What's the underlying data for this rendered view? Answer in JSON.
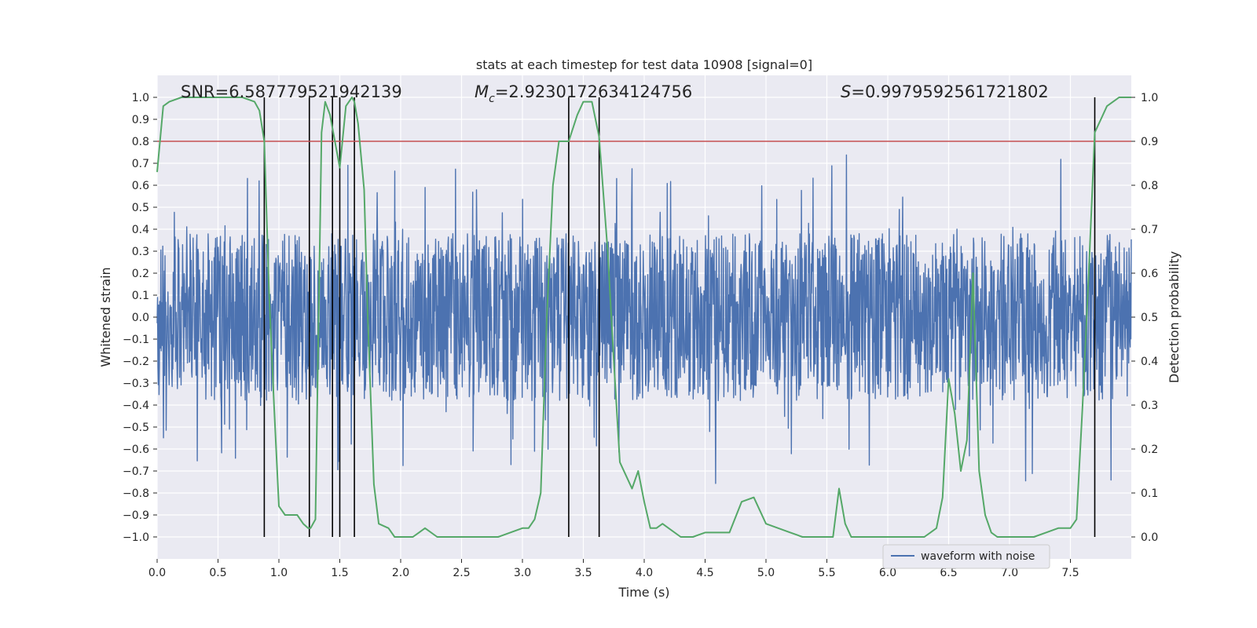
{
  "chart_data": {
    "type": "line",
    "title": "stats at each timestep for test data 10908 [signal=0]",
    "xlabel": "Time (s)",
    "ylabel_left": "Whitened strain",
    "ylabel_right": "Detection probability",
    "xlim": [
      0.0,
      8.0
    ],
    "ylim_left": [
      -1.1,
      1.1
    ],
    "ylim_right": [
      -0.05,
      1.05
    ],
    "x_ticks": [
      "0.0",
      "0.5",
      "1.0",
      "1.5",
      "2.0",
      "2.5",
      "3.0",
      "3.5",
      "4.0",
      "4.5",
      "5.0",
      "5.5",
      "6.0",
      "6.5",
      "7.0",
      "7.5"
    ],
    "y_ticks_left": [
      "1.0",
      "0.9",
      "0.8",
      "0.7",
      "0.6",
      "0.5",
      "0.4",
      "0.3",
      "0.2",
      "0.1",
      "0.0",
      "-0.1",
      "-0.2",
      "-0.3",
      "-0.4",
      "-0.5",
      "-0.6",
      "-0.7",
      "-0.8",
      "-0.9",
      "-1.0"
    ],
    "y_ticks_right": [
      "1.0",
      "0.9",
      "0.8",
      "0.7",
      "0.6",
      "0.5",
      "0.4",
      "0.3",
      "0.2",
      "0.1",
      "0.0"
    ],
    "grid": true,
    "legend": {
      "label": "waveform with noise",
      "placement": "lower-right"
    },
    "annotations": {
      "snr": "SNR=6.587779521942139",
      "mc_symbol": "M",
      "mc_sub": "c",
      "mc_value": "=2.9230172634124756",
      "s_symbol": "S",
      "s_value": "=0.9979592561721802"
    },
    "threshold": {
      "value": 0.9,
      "axis": "right",
      "color": "#c44e52"
    },
    "vertical_markers": [
      0.88,
      1.25,
      1.44,
      1.5,
      1.62,
      3.38,
      3.63,
      7.7
    ],
    "marker_range_right": [
      0.0,
      1.0
    ],
    "waveform": {
      "name": "waveform with noise",
      "color": "#4c72b0",
      "seed": 10908,
      "samples": 2600,
      "core_amplitude": 0.38,
      "peak_amplitude": 1.0
    },
    "probability_series": {
      "name": "detection probability",
      "color": "#55a868",
      "x": [
        0.0,
        0.05,
        0.1,
        0.2,
        0.3,
        0.4,
        0.5,
        0.6,
        0.7,
        0.8,
        0.84,
        0.88,
        0.92,
        0.96,
        1.0,
        1.05,
        1.1,
        1.15,
        1.2,
        1.24,
        1.26,
        1.3,
        1.35,
        1.38,
        1.42,
        1.46,
        1.5,
        1.55,
        1.6,
        1.62,
        1.65,
        1.7,
        1.73,
        1.78,
        1.82,
        1.9,
        1.95,
        2.0,
        2.05,
        2.1,
        2.15,
        2.2,
        2.3,
        2.4,
        2.5,
        2.6,
        2.7,
        2.8,
        2.9,
        3.0,
        3.05,
        3.1,
        3.15,
        3.2,
        3.25,
        3.3,
        3.38,
        3.45,
        3.5,
        3.57,
        3.63,
        3.7,
        3.75,
        3.8,
        3.9,
        3.95,
        4.0,
        4.05,
        4.1,
        4.15,
        4.2,
        4.3,
        4.4,
        4.5,
        4.6,
        4.7,
        4.8,
        4.9,
        5.0,
        5.1,
        5.2,
        5.3,
        5.4,
        5.5,
        5.55,
        5.6,
        5.65,
        5.7,
        5.75,
        5.8,
        5.9,
        6.0,
        6.1,
        6.2,
        6.3,
        6.35,
        6.4,
        6.45,
        6.5,
        6.55,
        6.6,
        6.65,
        6.7,
        6.75,
        6.8,
        6.85,
        6.9,
        6.95,
        7.0,
        7.1,
        7.2,
        7.3,
        7.4,
        7.45,
        7.5,
        7.55,
        7.6,
        7.65,
        7.7,
        7.75,
        7.8,
        7.85,
        7.9,
        7.95,
        8.0
      ],
      "values": [
        0.83,
        0.98,
        0.99,
        1.0,
        1.0,
        1.0,
        1.0,
        1.0,
        1.0,
        0.99,
        0.97,
        0.9,
        0.55,
        0.3,
        0.07,
        0.05,
        0.05,
        0.05,
        0.03,
        0.02,
        0.02,
        0.04,
        0.92,
        0.99,
        0.96,
        0.9,
        0.84,
        0.98,
        1.0,
        0.99,
        0.94,
        0.79,
        0.5,
        0.12,
        0.03,
        0.02,
        0.0,
        0.0,
        0.0,
        0.0,
        0.01,
        0.02,
        0.0,
        0.0,
        0.0,
        0.0,
        0.0,
        0.0,
        0.01,
        0.02,
        0.02,
        0.04,
        0.1,
        0.5,
        0.8,
        0.9,
        0.9,
        0.96,
        0.99,
        0.99,
        0.91,
        0.65,
        0.4,
        0.17,
        0.11,
        0.15,
        0.08,
        0.02,
        0.02,
        0.03,
        0.02,
        0.0,
        0.0,
        0.01,
        0.01,
        0.01,
        0.08,
        0.09,
        0.03,
        0.02,
        0.01,
        0.0,
        0.0,
        0.0,
        0.0,
        0.11,
        0.03,
        0.0,
        0.0,
        0.0,
        0.0,
        0.0,
        0.0,
        0.0,
        0.0,
        0.01,
        0.02,
        0.09,
        0.36,
        0.28,
        0.15,
        0.22,
        0.6,
        0.15,
        0.05,
        0.01,
        0.0,
        0.0,
        0.0,
        0.0,
        0.0,
        0.01,
        0.02,
        0.02,
        0.02,
        0.04,
        0.3,
        0.6,
        0.92,
        0.95,
        0.98,
        0.99,
        1.0,
        1.0,
        1.0
      ]
    }
  }
}
